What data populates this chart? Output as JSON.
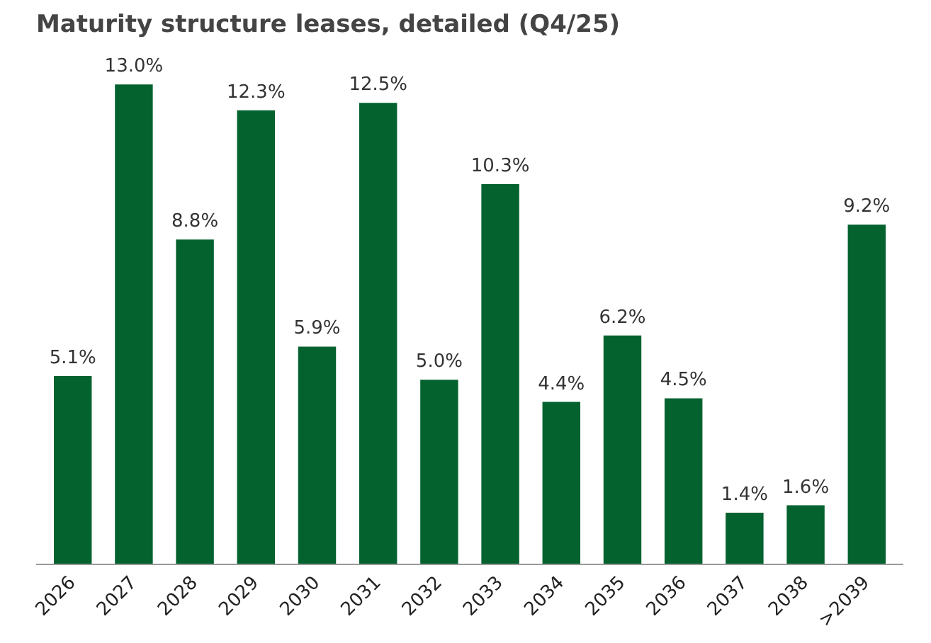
{
  "chart_data": {
    "type": "bar",
    "title": "Maturity structure leases, detailed (Q4/25)",
    "categories": [
      "2026",
      "2027",
      "2028",
      "2029",
      "2030",
      "2031",
      "2032",
      "2033",
      "2034",
      "2035",
      "2036",
      "2037",
      "2038",
      ">2039"
    ],
    "values": [
      5.1,
      13.0,
      8.8,
      12.3,
      5.9,
      12.5,
      5.0,
      10.3,
      4.4,
      6.2,
      4.5,
      1.4,
      1.6,
      9.2
    ],
    "value_labels": [
      "5.1%",
      "13.0%",
      "8.8%",
      "12.3%",
      "5.9%",
      "12.5%",
      "5.0%",
      "10.3%",
      "4.4%",
      "6.2%",
      "4.5%",
      "1.4%",
      "1.6%",
      "9.2%"
    ],
    "color": "#04622f"
  }
}
